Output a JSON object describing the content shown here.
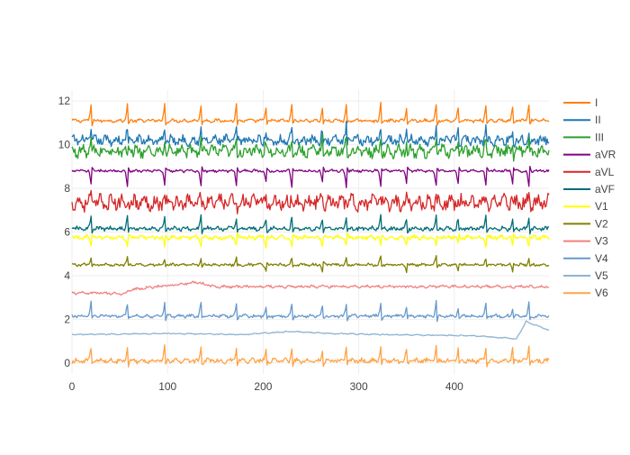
{
  "chart_data": {
    "type": "line",
    "x_range": [
      0,
      499
    ],
    "y_range": [
      -0.5,
      12.5
    ],
    "x_ticks": [
      0,
      100,
      200,
      300,
      400
    ],
    "y_ticks": [
      0,
      2,
      4,
      6,
      8,
      10,
      12
    ],
    "grid": true,
    "legend_position": "right",
    "series": [
      {
        "name": "I",
        "color": "#ff7f0e",
        "baseline": 11.1,
        "beats": [
          {
            "at": 20,
            "amp": 0.75
          },
          {
            "at": 58,
            "amp": 0.75
          },
          {
            "at": 97,
            "amp": 0.75
          },
          {
            "at": 135,
            "amp": 0.75
          },
          {
            "at": 172,
            "amp": 0.75
          },
          {
            "at": 203,
            "amp": 0.6
          },
          {
            "at": 230,
            "amp": 0.75
          },
          {
            "at": 262,
            "amp": 0.6
          },
          {
            "at": 287,
            "amp": 0.75
          },
          {
            "at": 323,
            "amp": 0.75
          },
          {
            "at": 350,
            "amp": 0.6
          },
          {
            "at": 381,
            "amp": 0.75
          },
          {
            "at": 404,
            "amp": 0.6
          },
          {
            "at": 433,
            "amp": 0.75
          },
          {
            "at": 461,
            "amp": 0.6
          },
          {
            "at": 478,
            "amp": 0.75
          }
        ],
        "noise": 0.06
      },
      {
        "name": "II",
        "color": "#1f77b4",
        "baseline": 10.2,
        "beats": [
          {
            "at": 20,
            "amp": 0.5
          },
          {
            "at": 58,
            "amp": 0.5
          },
          {
            "at": 97,
            "amp": 0.5
          },
          {
            "at": 135,
            "amp": 0.5
          },
          {
            "at": 172,
            "amp": 0.5
          },
          {
            "at": 203,
            "amp": 0.45
          },
          {
            "at": 230,
            "amp": 0.6
          },
          {
            "at": 262,
            "amp": 0.45
          },
          {
            "at": 287,
            "amp": 0.6
          },
          {
            "at": 323,
            "amp": 0.5
          },
          {
            "at": 350,
            "amp": 0.45
          },
          {
            "at": 381,
            "amp": 0.5
          },
          {
            "at": 404,
            "amp": 0.45
          },
          {
            "at": 433,
            "amp": 0.6
          },
          {
            "at": 461,
            "amp": 0.45
          },
          {
            "at": 478,
            "amp": 0.5
          }
        ],
        "noise": 0.18
      },
      {
        "name": "III",
        "color": "#2ca02c",
        "baseline": 9.7,
        "beats": [
          {
            "at": 20,
            "amp": 0.5
          },
          {
            "at": 58,
            "amp": -0.4
          },
          {
            "at": 97,
            "amp": 0.5
          },
          {
            "at": 135,
            "amp": 0.5
          },
          {
            "at": 172,
            "amp": 0.5
          },
          {
            "at": 203,
            "amp": 0.45
          },
          {
            "at": 230,
            "amp": 0.55
          },
          {
            "at": 262,
            "amp": 0.45
          },
          {
            "at": 287,
            "amp": 0.5
          },
          {
            "at": 323,
            "amp": 0.5
          },
          {
            "at": 350,
            "amp": 0.45
          },
          {
            "at": 381,
            "amp": 0.5
          },
          {
            "at": 404,
            "amp": 0.45
          },
          {
            "at": 433,
            "amp": 0.5
          },
          {
            "at": 461,
            "amp": 0.45
          },
          {
            "at": 478,
            "amp": 0.5
          }
        ],
        "noise": 0.22
      },
      {
        "name": "aVR",
        "color": "#800080",
        "baseline": 8.8,
        "beats": [
          {
            "at": 20,
            "amp": -0.65
          },
          {
            "at": 58,
            "amp": -0.7
          },
          {
            "at": 97,
            "amp": -0.65
          },
          {
            "at": 135,
            "amp": -0.7
          },
          {
            "at": 172,
            "amp": -0.65
          },
          {
            "at": 203,
            "amp": -0.55
          },
          {
            "at": 230,
            "amp": -0.7
          },
          {
            "at": 262,
            "amp": -0.55
          },
          {
            "at": 287,
            "amp": -0.75
          },
          {
            "at": 323,
            "amp": -0.65
          },
          {
            "at": 350,
            "amp": -0.55
          },
          {
            "at": 381,
            "amp": -0.65
          },
          {
            "at": 404,
            "amp": -0.55
          },
          {
            "at": 433,
            "amp": -0.7
          },
          {
            "at": 461,
            "amp": -0.55
          },
          {
            "at": 478,
            "amp": -0.7
          }
        ],
        "noise": 0.05
      },
      {
        "name": "aVL",
        "color": "#d62728",
        "baseline": 7.35,
        "beats": [
          {
            "at": 20,
            "amp": 0.3
          },
          {
            "at": 58,
            "amp": 0.3
          },
          {
            "at": 97,
            "amp": 0.3
          },
          {
            "at": 135,
            "amp": 0.3
          },
          {
            "at": 172,
            "amp": 0.3
          },
          {
            "at": 203,
            "amp": 0.25
          },
          {
            "at": 230,
            "amp": 0.35
          },
          {
            "at": 262,
            "amp": 0.25
          },
          {
            "at": 287,
            "amp": 0.35
          },
          {
            "at": 323,
            "amp": 0.3
          },
          {
            "at": 350,
            "amp": 0.25
          },
          {
            "at": 381,
            "amp": 0.35
          },
          {
            "at": 404,
            "amp": 0.25
          },
          {
            "at": 433,
            "amp": 0.35
          },
          {
            "at": 461,
            "amp": 0.25
          },
          {
            "at": 478,
            "amp": 0.3
          }
        ],
        "noise": 0.28
      },
      {
        "name": "aVF",
        "color": "#006d77",
        "baseline": 6.15,
        "beats": [
          {
            "at": 20,
            "amp": 0.55
          },
          {
            "at": 58,
            "amp": 0.6
          },
          {
            "at": 97,
            "amp": 0.55
          },
          {
            "at": 135,
            "amp": 0.6
          },
          {
            "at": 172,
            "amp": 0.55
          },
          {
            "at": 203,
            "amp": 0.45
          },
          {
            "at": 230,
            "amp": 0.6
          },
          {
            "at": 262,
            "amp": 0.45
          },
          {
            "at": 287,
            "amp": 0.6
          },
          {
            "at": 323,
            "amp": 0.55
          },
          {
            "at": 350,
            "amp": 0.45
          },
          {
            "at": 381,
            "amp": 0.6
          },
          {
            "at": 404,
            "amp": 0.45
          },
          {
            "at": 433,
            "amp": 0.6
          },
          {
            "at": 461,
            "amp": 0.45
          },
          {
            "at": 478,
            "amp": 0.55
          }
        ],
        "noise": 0.08
      },
      {
        "name": "V1",
        "color": "#ffff00",
        "baseline": 5.75,
        "beats": [
          {
            "at": 20,
            "amp": -0.4
          },
          {
            "at": 58,
            "amp": -0.4
          },
          {
            "at": 97,
            "amp": -0.4
          },
          {
            "at": 135,
            "amp": -0.4
          },
          {
            "at": 172,
            "amp": -0.4
          },
          {
            "at": 203,
            "amp": -0.35
          },
          {
            "at": 230,
            "amp": -0.4
          },
          {
            "at": 262,
            "amp": -0.35
          },
          {
            "at": 287,
            "amp": -0.4
          },
          {
            "at": 323,
            "amp": -0.4
          },
          {
            "at": 350,
            "amp": -0.35
          },
          {
            "at": 381,
            "amp": -0.4
          },
          {
            "at": 404,
            "amp": -0.35
          },
          {
            "at": 433,
            "amp": -0.4
          },
          {
            "at": 461,
            "amp": -0.35
          },
          {
            "at": 478,
            "amp": -0.4
          }
        ],
        "noise": 0.08
      },
      {
        "name": "V2",
        "color": "#808000",
        "baseline": 4.5,
        "beats": [
          {
            "at": 20,
            "amp": 0.3
          },
          {
            "at": 58,
            "amp": 0.3
          },
          {
            "at": 97,
            "amp": 0.3
          },
          {
            "at": 135,
            "amp": 0.3
          },
          {
            "at": 172,
            "amp": 0.3
          },
          {
            "at": 203,
            "amp": -0.3
          },
          {
            "at": 230,
            "amp": 0.3
          },
          {
            "at": 262,
            "amp": -0.3
          },
          {
            "at": 287,
            "amp": 0.3
          },
          {
            "at": 323,
            "amp": 0.35
          },
          {
            "at": 350,
            "amp": -0.3
          },
          {
            "at": 381,
            "amp": 0.45
          },
          {
            "at": 404,
            "amp": -0.3
          },
          {
            "at": 433,
            "amp": 0.3
          },
          {
            "at": 461,
            "amp": -0.3
          },
          {
            "at": 478,
            "amp": 0.3
          }
        ],
        "noise": 0.05
      },
      {
        "name": "V3",
        "color": "#f08080",
        "baseline": 3.45,
        "beats": [],
        "noise": 0.05
      },
      {
        "name": "V4",
        "color": "#6699cc",
        "baseline": 2.15,
        "beats": [
          {
            "at": 20,
            "amp": 0.6
          },
          {
            "at": 58,
            "amp": 0.55
          },
          {
            "at": 97,
            "amp": 0.6
          },
          {
            "at": 135,
            "amp": 0.65
          },
          {
            "at": 172,
            "amp": 0.55
          },
          {
            "at": 203,
            "amp": 0.4
          },
          {
            "at": 230,
            "amp": 0.6
          },
          {
            "at": 262,
            "amp": 0.4
          },
          {
            "at": 287,
            "amp": 0.6
          },
          {
            "at": 323,
            "amp": 0.6
          },
          {
            "at": 350,
            "amp": 0.4
          },
          {
            "at": 381,
            "amp": 0.7
          },
          {
            "at": 404,
            "amp": 0.4
          },
          {
            "at": 433,
            "amp": 0.6
          },
          {
            "at": 461,
            "amp": 0.4
          },
          {
            "at": 478,
            "amp": 0.6
          }
        ],
        "noise": 0.06
      },
      {
        "name": "V5",
        "color": "#8cb4d2",
        "baseline": 1.3,
        "beats": [],
        "noise": 0.02
      },
      {
        "name": "V6",
        "color": "#ffa347",
        "baseline": 0.1,
        "beats": [
          {
            "at": 20,
            "amp": 0.65
          },
          {
            "at": 58,
            "amp": 0.65
          },
          {
            "at": 97,
            "amp": 0.65
          },
          {
            "at": 135,
            "amp": 0.65
          },
          {
            "at": 172,
            "amp": 0.65
          },
          {
            "at": 203,
            "amp": 0.5
          },
          {
            "at": 230,
            "amp": 0.65
          },
          {
            "at": 262,
            "amp": 0.5
          },
          {
            "at": 287,
            "amp": 0.65
          },
          {
            "at": 323,
            "amp": 0.65
          },
          {
            "at": 350,
            "amp": 0.5
          },
          {
            "at": 381,
            "amp": 0.65
          },
          {
            "at": 404,
            "amp": 0.5
          },
          {
            "at": 433,
            "amp": 0.65
          },
          {
            "at": 461,
            "amp": 0.5
          },
          {
            "at": 478,
            "amp": 0.65
          }
        ],
        "noise": 0.09
      }
    ],
    "special_shapes": {
      "V3": [
        {
          "x": 45,
          "dy": -0.25
        },
        {
          "x": 55,
          "dy": -0.3
        },
        {
          "x": 60,
          "dy": -0.1
        },
        {
          "x": 130,
          "dy": 0.25
        },
        {
          "x": 140,
          "dy": 0.15
        },
        {
          "x": 150,
          "dy": 0.05
        }
      ],
      "V5": [
        {
          "x": 0,
          "dy": 0.0
        },
        {
          "x": 100,
          "dy": 0.05
        },
        {
          "x": 180,
          "dy": 0.0
        },
        {
          "x": 230,
          "dy": 0.15
        },
        {
          "x": 270,
          "dy": 0.05
        },
        {
          "x": 330,
          "dy": 0.0
        },
        {
          "x": 420,
          "dy": -0.05
        },
        {
          "x": 452,
          "dy": -0.15
        },
        {
          "x": 465,
          "dy": -0.2
        },
        {
          "x": 475,
          "dy": 0.6
        },
        {
          "x": 490,
          "dy": 0.35
        },
        {
          "x": 499,
          "dy": 0.2
        }
      ]
    }
  }
}
